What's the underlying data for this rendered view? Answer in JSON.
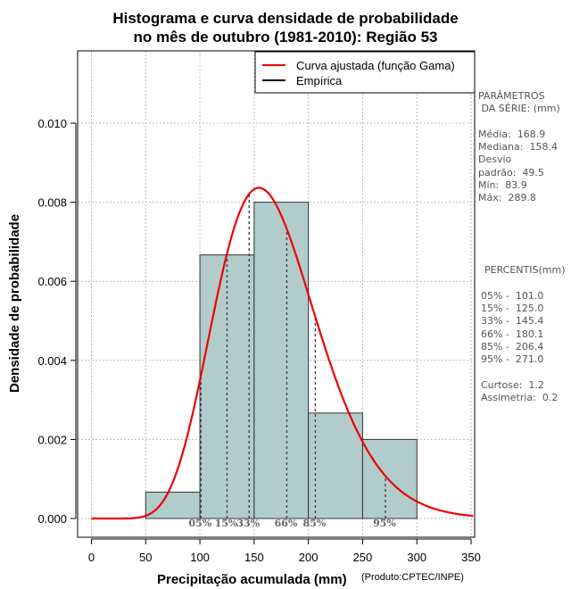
{
  "chart_data": {
    "type": "histogram",
    "title": [
      "Histograma e curva densidade de probabilidade",
      "no mês de outubro (1981-2010): Região 53"
    ],
    "xlabel": "Precipitação acumulada (mm)",
    "ylabel": "Densidade de probabilidade",
    "credit": "(Produto:CPTEC/INPE)",
    "xlim": [
      -12,
      352
    ],
    "ylim": [
      0,
      0.0117
    ],
    "x_ticks": [
      0,
      50,
      100,
      150,
      200,
      250,
      300,
      350
    ],
    "y_ticks": [
      0.0,
      0.002,
      0.004,
      0.006,
      0.008,
      0.01
    ],
    "y_tick_labels": [
      "0.000",
      "0.002",
      "0.004",
      "0.006",
      "0.008",
      "0.010"
    ],
    "grid": true,
    "bars": [
      {
        "x0": 50,
        "x1": 100,
        "density": 0.000667
      },
      {
        "x0": 100,
        "x1": 150,
        "density": 0.006667
      },
      {
        "x0": 150,
        "x1": 200,
        "density": 0.008
      },
      {
        "x0": 200,
        "x1": 250,
        "density": 0.002667
      },
      {
        "x0": 250,
        "x1": 300,
        "density": 0.002
      }
    ],
    "gamma_fit": {
      "mean": 168.9,
      "sd": 49.5
    },
    "percentile_lines": [
      {
        "label": "05%",
        "value": 101.0
      },
      {
        "label": "15%",
        "value": 125.0
      },
      {
        "label": "33%",
        "value": 145.4
      },
      {
        "label": "66%",
        "value": 180.1
      },
      {
        "label": "85%",
        "value": 206.4
      },
      {
        "label": "95%",
        "value": 271.0
      }
    ],
    "legend": {
      "position": "top-right",
      "entries": [
        {
          "label": "Curva ajustada (função Gama)",
          "color": "#ee0000"
        },
        {
          "label": "Empírica",
          "color": "#000000"
        }
      ]
    },
    "colors": {
      "bar_fill": "#b2cccc",
      "curve": "#ee0000",
      "grid": "#bbbbbb",
      "pct_text": "#666666"
    }
  },
  "stats": {
    "params_title": [
      "PARÂMETROS",
      " DA SÉRIE: (mm)"
    ],
    "media": "Média:  168.9",
    "mediana": "Mediana:  158.4",
    "desvio1": "Desvio",
    "desvio2": "padrão:  49.5",
    "min": "Mín:  83.9",
    "max": "Máx:  289.8",
    "percentis_title": "PERCENTIS(mm)",
    "percentis": [
      "05% -  101.0",
      "15% -  125.0",
      "33% -  145.4",
      "66% -  180.1",
      "85% -  206.4",
      "95% -  271.0"
    ],
    "curtose": "Curtose:  1.2",
    "assimetria": "Assimetria:  0.2"
  }
}
